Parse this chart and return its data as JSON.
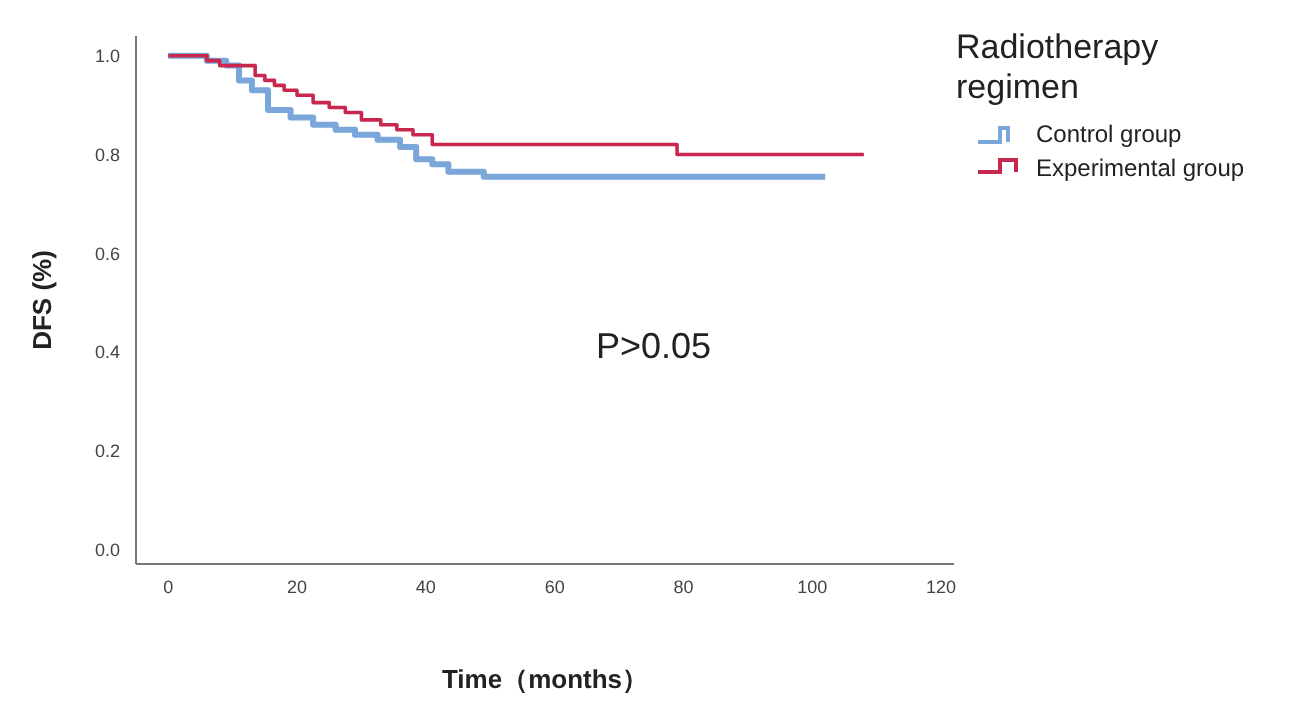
{
  "chart_data": {
    "type": "step",
    "xlabel": "Time（months）",
    "ylabel": "DFS (%)",
    "legend_title": "Radiotherapy regimen",
    "annotations": [
      "P>0.05"
    ],
    "xlim": [
      -5,
      122
    ],
    "xticks": [
      0,
      20,
      40,
      60,
      80,
      100,
      120
    ],
    "ylim": [
      -0.03,
      1.04
    ],
    "yticks": [
      {
        "value": 0,
        "label": "0.0"
      },
      {
        "value": 0.2,
        "label": "0.2"
      },
      {
        "value": 0.4,
        "label": "0.4"
      },
      {
        "value": 0.6,
        "label": "0.6"
      },
      {
        "value": 0.8,
        "label": "0.8"
      },
      {
        "value": 1,
        "label": "1.0"
      }
    ],
    "grid": false,
    "legend": "top right",
    "marker": "none",
    "line_style": "solid",
    "series": [
      {
        "name": "Control group",
        "color": "#7aa6d9",
        "x": [
          0,
          6,
          9,
          11,
          13,
          15.5,
          19,
          22.5,
          26,
          29,
          32.5,
          36,
          38.5,
          41,
          43.5,
          49,
          102
        ],
        "values": [
          1,
          0.99,
          0.98,
          0.95,
          0.93,
          0.89,
          0.875,
          0.86,
          0.85,
          0.84,
          0.83,
          0.815,
          0.79,
          0.78,
          0.765,
          0.755,
          0.755
        ]
      },
      {
        "name": "Experimental group",
        "color": "#c8284e",
        "x": [
          0,
          6,
          8,
          13.5,
          15,
          16.5,
          18,
          20,
          22.5,
          25,
          27.5,
          30,
          33,
          35.5,
          38,
          41,
          79,
          108
        ],
        "values": [
          1,
          0.99,
          0.98,
          0.96,
          0.95,
          0.94,
          0.93,
          0.92,
          0.905,
          0.895,
          0.885,
          0.87,
          0.86,
          0.85,
          0.84,
          0.82,
          0.8,
          0.8
        ]
      }
    ]
  }
}
